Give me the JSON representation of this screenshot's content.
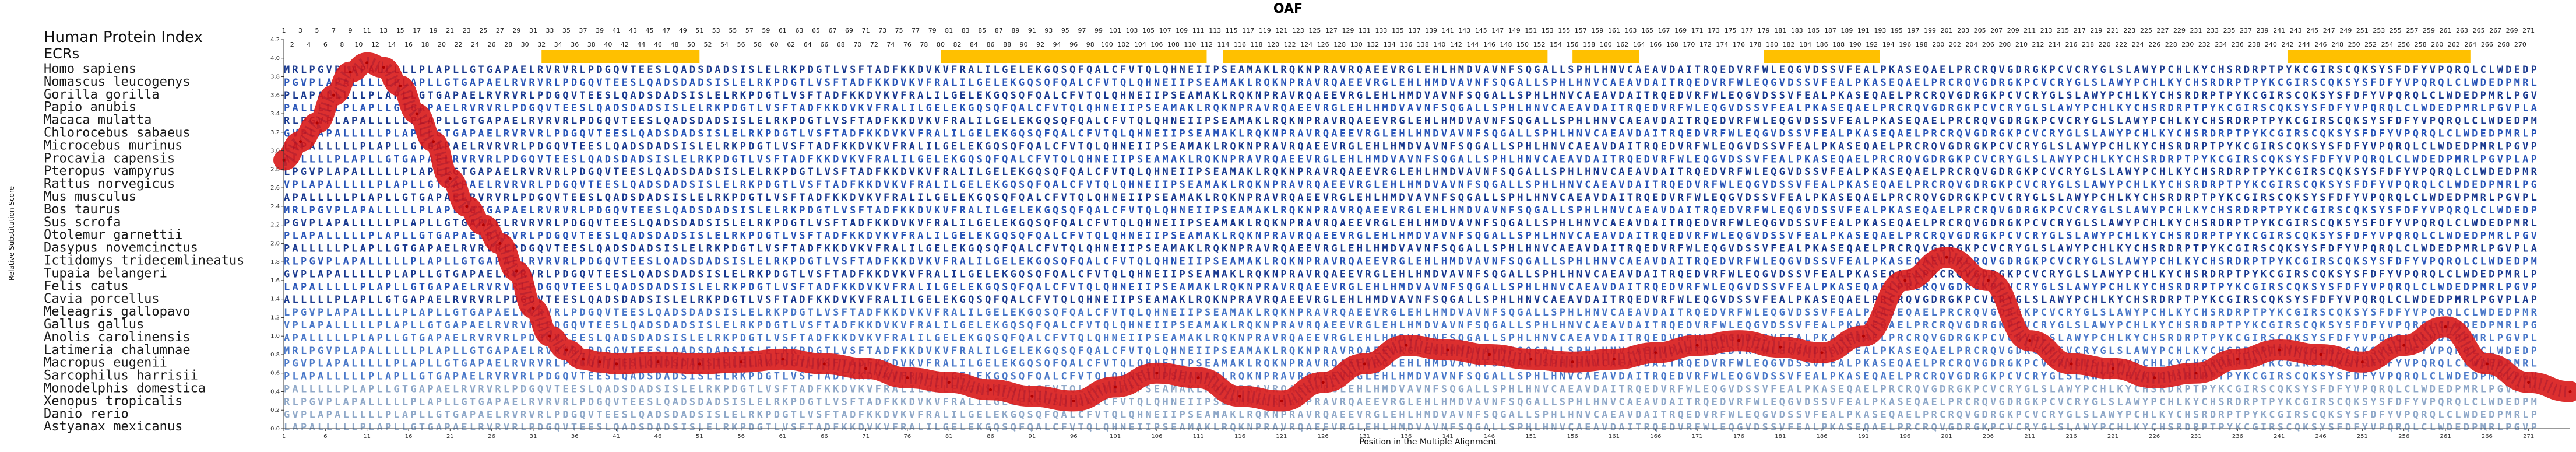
{
  "chart_data": {
    "type": "line",
    "title": "OAF",
    "xlabel": "Position in the Multiple Alignment",
    "ylabel": "Relative Substitution Score",
    "header_labels": [
      "Human Protein Index",
      "ECRs"
    ],
    "xlim": [
      1,
      276
    ],
    "ylim": [
      0,
      4.2
    ],
    "x_ticks": [
      1,
      6,
      11,
      16,
      21,
      26,
      31,
      36,
      41,
      46,
      51,
      56,
      61,
      66,
      71,
      76,
      81,
      86,
      91,
      96,
      101,
      106,
      111,
      116,
      121,
      126,
      131,
      136,
      141,
      146,
      151,
      156,
      161,
      166,
      171,
      176,
      181,
      186,
      191,
      196,
      201,
      206,
      211,
      216,
      221,
      226,
      231,
      236,
      241,
      246,
      251,
      256,
      261,
      266,
      271
    ],
    "y_ticks": [
      "0.0",
      "0.2",
      "0.4",
      "0.6",
      "0.8",
      "1.0",
      "1.2",
      "1.4",
      "1.6",
      "1.8",
      "2.0",
      "2.2",
      "2.4",
      "2.6",
      "2.8",
      "3.0",
      "3.2",
      "3.4",
      "3.6",
      "3.8",
      "4.0",
      "4.2"
    ],
    "species": [
      "Homo sapiens",
      "Nomascus leucogenys",
      "Gorilla gorilla",
      "Papio anubis",
      "Macaca mulatta",
      "Chlorocebus sabaeus",
      "Microcebus murinus",
      "Procavia capensis",
      "Pteropus vampyrus",
      "Rattus norvegicus",
      "Mus musculus",
      "Bos taurus",
      "Sus scrofa",
      "Otolemur garnettii",
      "Dasypus novemcinctus",
      "Ictidomys tridecemlineatus",
      "Tupaia belangeri",
      "Felis catus",
      "Cavia porcellus",
      "Meleagris gallopavo",
      "Gallus gallus",
      "Anolis carolinensis",
      "Latimeria chalumnae",
      "Macropus eugenii",
      "Sarcophilus harrisii",
      "Monodelphis domestica",
      "Xenopus tropicalis",
      "Danio rerio",
      "Astyanax mexicanus"
    ],
    "ecr_regions": [
      [
        32,
        51
      ],
      [
        80,
        112
      ],
      [
        114,
        153
      ],
      [
        156,
        164
      ],
      [
        179,
        193
      ],
      [
        242,
        264
      ]
    ],
    "series": [
      {
        "x": [
          1,
          3,
          5,
          7,
          9,
          11,
          13,
          15,
          17,
          19,
          21,
          23,
          25,
          27,
          29,
          31,
          33,
          35,
          37,
          39,
          41,
          46,
          51,
          56,
          61,
          66,
          71,
          76,
          81,
          86,
          91,
          96,
          101,
          106,
          111,
          116,
          121,
          126,
          131,
          136,
          141,
          146,
          151,
          156,
          161,
          166,
          171,
          176,
          181,
          186,
          191,
          196,
          201,
          206,
          211,
          216,
          221,
          226,
          231,
          236,
          241,
          246,
          251,
          256,
          261,
          266,
          271,
          276
        ],
        "values": [
          2.9,
          3.1,
          3.3,
          3.6,
          3.85,
          3.95,
          3.9,
          3.7,
          3.4,
          3.1,
          2.7,
          2.4,
          2.2,
          2.0,
          1.7,
          1.3,
          1.0,
          0.85,
          0.75,
          0.72,
          0.7,
          0.72,
          0.7,
          0.72,
          0.75,
          0.7,
          0.65,
          0.55,
          0.5,
          0.42,
          0.35,
          0.3,
          0.45,
          0.6,
          0.55,
          0.35,
          0.3,
          0.5,
          0.7,
          0.9,
          0.85,
          0.8,
          0.75,
          0.72,
          0.75,
          0.82,
          0.9,
          0.95,
          0.88,
          0.82,
          1.0,
          1.6,
          1.85,
          1.6,
          0.95,
          0.7,
          0.65,
          0.55,
          0.6,
          0.75,
          0.85,
          0.8,
          0.72,
          0.9,
          1.1,
          0.7,
          0.5,
          0.4
        ]
      }
    ]
  }
}
